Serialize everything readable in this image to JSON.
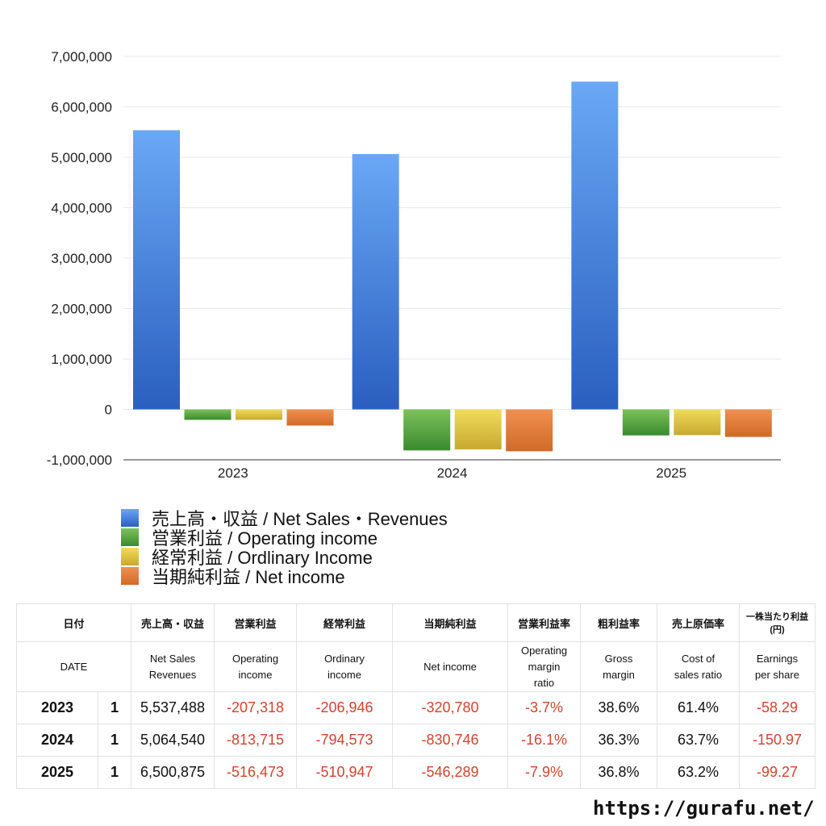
{
  "chart_data": {
    "type": "bar",
    "categories": [
      "2023",
      "2024",
      "2025"
    ],
    "series": [
      {
        "name": "売上高・収益 / Net Sales・Revenues",
        "color": "#3f7fd9",
        "values": [
          5537488,
          5064540,
          6500875
        ]
      },
      {
        "name": "営業利益 / Operating income",
        "color": "#4a9a3a",
        "values": [
          -207318,
          -813715,
          -516473
        ]
      },
      {
        "name": "経常利益 / Ordlinary Income",
        "color": "#d8c040",
        "values": [
          -206946,
          -794573,
          -510947
        ]
      },
      {
        "name": "当期純利益 / Net income",
        "color": "#dd7a30",
        "values": [
          -320780,
          -830746,
          -546289
        ]
      }
    ],
    "ylim": [
      -1000000,
      7000000
    ],
    "yticks": [
      "7,000,000",
      "6,000,000",
      "5,000,000",
      "4,000,000",
      "3,000,000",
      "2,000,000",
      "1,000,000",
      "0",
      "-1,000,000"
    ],
    "ytick_values": [
      7000000,
      6000000,
      5000000,
      4000000,
      3000000,
      2000000,
      1000000,
      0,
      -1000000
    ],
    "grid": true,
    "legend_position": "bottom-left"
  },
  "table": {
    "header_jp": [
      "日付",
      "",
      "売上高・収益",
      "営業利益",
      "経常利益",
      "当期純利益",
      "営業利益率",
      "粗利益率",
      "売上原価率",
      "一株当たり利益\n(円)"
    ],
    "header_en": [
      "DATE",
      "",
      "Net Sales\nRevenues",
      "Operating\nincome",
      "Ordinary\nincome",
      "Net income",
      "Operating\nmargin\nratio",
      "Gross\nmargin",
      "Cost of\nsales ratio",
      "Earnings\nper share"
    ],
    "rows": [
      [
        "2023",
        "1",
        "5,537,488",
        "-207,318",
        "-206,946",
        "-320,780",
        "-3.7%",
        "38.6%",
        "61.4%",
        "-58.29"
      ],
      [
        "2024",
        "1",
        "5,064,540",
        "-813,715",
        "-794,573",
        "-830,746",
        "-16.1%",
        "36.3%",
        "63.7%",
        "-150.97"
      ],
      [
        "2025",
        "1",
        "6,500,875",
        "-516,473",
        "-510,947",
        "-546,289",
        "-7.9%",
        "36.8%",
        "63.2%",
        "-99.27"
      ]
    ]
  },
  "footer": {
    "url": "https://gurafu.net/"
  }
}
